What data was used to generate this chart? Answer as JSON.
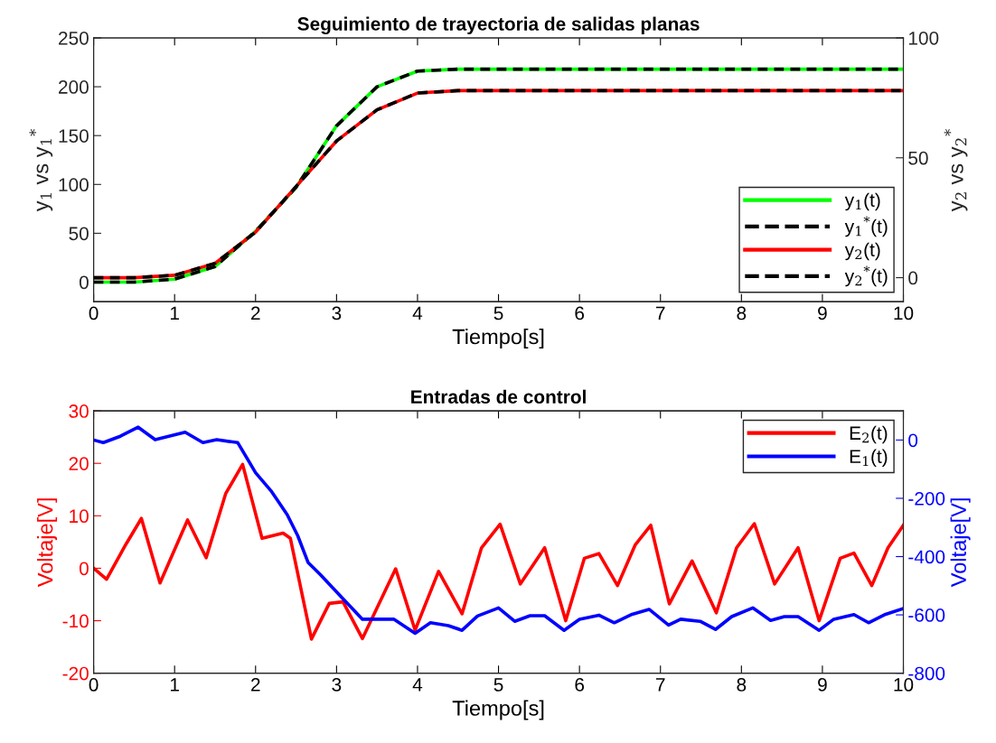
{
  "chart_data": [
    {
      "type": "line",
      "title": "Seguimiento de trayectoria de salidas planas",
      "xlabel": "Tiempo[s]",
      "ylabel": "y$_{1}$ vs y$_{1}$$^{*}$",
      "y2label": "y$_{2}$ vs y$_{2}$$^{*}$",
      "xlim": [
        0,
        10
      ],
      "xticks": [
        0,
        1,
        2,
        3,
        4,
        5,
        6,
        7,
        8,
        9,
        10
      ],
      "ylim": [
        -20,
        250
      ],
      "yticks": [
        0,
        50,
        100,
        150,
        200,
        250
      ],
      "y2lim": [
        -10,
        100
      ],
      "y2ticks": [
        0,
        50,
        100
      ],
      "legend": "bottom right",
      "grid": false,
      "series": [
        {
          "name": "y$_{1}$(t)",
          "color": "#00ff00",
          "line_style": "solid",
          "x": [
            0,
            0.5,
            1,
            1.5,
            2,
            2.5,
            3,
            3.5,
            4,
            4.5,
            5,
            6,
            7,
            8,
            9,
            10
          ],
          "values": [
            0,
            0,
            3,
            16,
            52,
            97,
            160,
            200,
            216,
            218,
            218,
            218,
            218,
            218,
            218,
            218
          ]
        },
        {
          "name": "y$_{1}$$^{*}$(t)",
          "color": "#000000",
          "line_style": "dashed",
          "x": [
            0,
            0.5,
            1,
            1.5,
            2,
            2.5,
            3,
            3.5,
            4,
            4.5,
            5,
            6,
            7,
            8,
            9,
            10
          ],
          "values": [
            0,
            0,
            3,
            16,
            52,
            97,
            160,
            200,
            216,
            218,
            218,
            218,
            218,
            218,
            218,
            218
          ]
        },
        {
          "name": "y$_{2}$(t)",
          "color": "#ff0000",
          "line_style": "solid",
          "axis": "y2",
          "x": [
            0,
            0.5,
            1,
            1.5,
            2,
            2.5,
            3,
            3.5,
            4,
            4.5,
            5,
            6,
            7,
            8,
            9,
            10
          ],
          "values": [
            0,
            0,
            1,
            6,
            19,
            38,
            57,
            70,
            77,
            78,
            78,
            78,
            78,
            78,
            78,
            78
          ]
        },
        {
          "name": "y$_{2}$$^{*}$(t)",
          "color": "#000000",
          "line_style": "dashed",
          "axis": "y2",
          "x": [
            0,
            0.5,
            1,
            1.5,
            2,
            2.5,
            3,
            3.5,
            4,
            4.5,
            5,
            6,
            7,
            8,
            9,
            10
          ],
          "values": [
            0,
            0,
            1,
            6,
            19,
            38,
            57,
            70,
            77,
            78,
            78,
            78,
            78,
            78,
            78,
            78
          ]
        }
      ]
    },
    {
      "type": "line",
      "title": "Entradas de control",
      "xlabel": "Tiempo[s]",
      "ylabel": "Voltaje[V]",
      "y2label": "Voltaje[V]",
      "xlim": [
        0,
        10
      ],
      "xticks": [
        0,
        1,
        2,
        3,
        4,
        5,
        6,
        7,
        8,
        9,
        10
      ],
      "ylim": [
        -20,
        30
      ],
      "yticks": [
        -20,
        -10,
        0,
        10,
        20,
        30
      ],
      "y2lim": [
        -800,
        100
      ],
      "y2ticks": [
        -800,
        -600,
        -400,
        -200,
        0
      ],
      "legend": "top right",
      "grid": false,
      "series": [
        {
          "name": "E$_{2}$(t)",
          "color": "#ff0000",
          "line_style": "solid",
          "x": [
            0,
            0.16,
            0.4,
            0.59,
            0.82,
            1.16,
            1.39,
            1.63,
            1.84,
            2.08,
            2.34,
            2.43,
            2.69,
            2.91,
            3.08,
            3.32,
            3.73,
            3.97,
            4.26,
            4.55,
            4.79,
            5.02,
            5.27,
            5.57,
            5.83,
            6.06,
            6.24,
            6.47,
            6.69,
            6.88,
            7.11,
            7.39,
            7.69,
            7.94,
            8.16,
            8.41,
            8.7,
            8.96,
            9.22,
            9.39,
            9.61,
            9.81,
            10
          ],
          "values": [
            0,
            -2.1,
            4.6,
            9.5,
            -2.8,
            9.2,
            2,
            14.2,
            19.8,
            5.7,
            6.7,
            5.7,
            -13.5,
            -6.7,
            -6.4,
            -13.4,
            -0.1,
            -11.8,
            -0.6,
            -8.7,
            3.9,
            8.4,
            -3,
            3.9,
            -10,
            1.9,
            2.8,
            -3.3,
            4.5,
            8.2,
            -6.8,
            1.4,
            -8.5,
            3.9,
            8.5,
            -3,
            3.9,
            -10,
            1.9,
            2.9,
            -3.3,
            3.9,
            8.2
          ]
        },
        {
          "name": "E$_{1}$(t)",
          "color": "#0000ff",
          "line_style": "solid",
          "axis": "y2",
          "x": [
            0,
            0.12,
            0.33,
            0.55,
            0.76,
            1.13,
            1.35,
            1.52,
            1.78,
            2,
            2.19,
            2.39,
            2.52,
            2.65,
            2.8,
            3.08,
            3.32,
            3.71,
            3.97,
            4.16,
            4.38,
            4.55,
            4.74,
            5,
            5.2,
            5.39,
            5.57,
            5.81,
            6,
            6.24,
            6.43,
            6.65,
            6.86,
            7.1,
            7.25,
            7.49,
            7.68,
            7.88,
            8.14,
            8.36,
            8.53,
            8.7,
            8.96,
            9.14,
            9.39,
            9.57,
            9.78,
            10
          ],
          "values": [
            0,
            -9,
            13,
            44,
            1,
            27,
            -9,
            1,
            -9,
            -112,
            -174,
            -256,
            -328,
            -421,
            -462,
            -545,
            -615,
            -615,
            -663,
            -627,
            -637,
            -653,
            -604,
            -576,
            -622,
            -603,
            -603,
            -653,
            -615,
            -601,
            -627,
            -598,
            -581,
            -635,
            -615,
            -622,
            -650,
            -606,
            -576,
            -619,
            -606,
            -606,
            -653,
            -615,
            -599,
            -627,
            -598,
            -578
          ]
        }
      ]
    }
  ]
}
